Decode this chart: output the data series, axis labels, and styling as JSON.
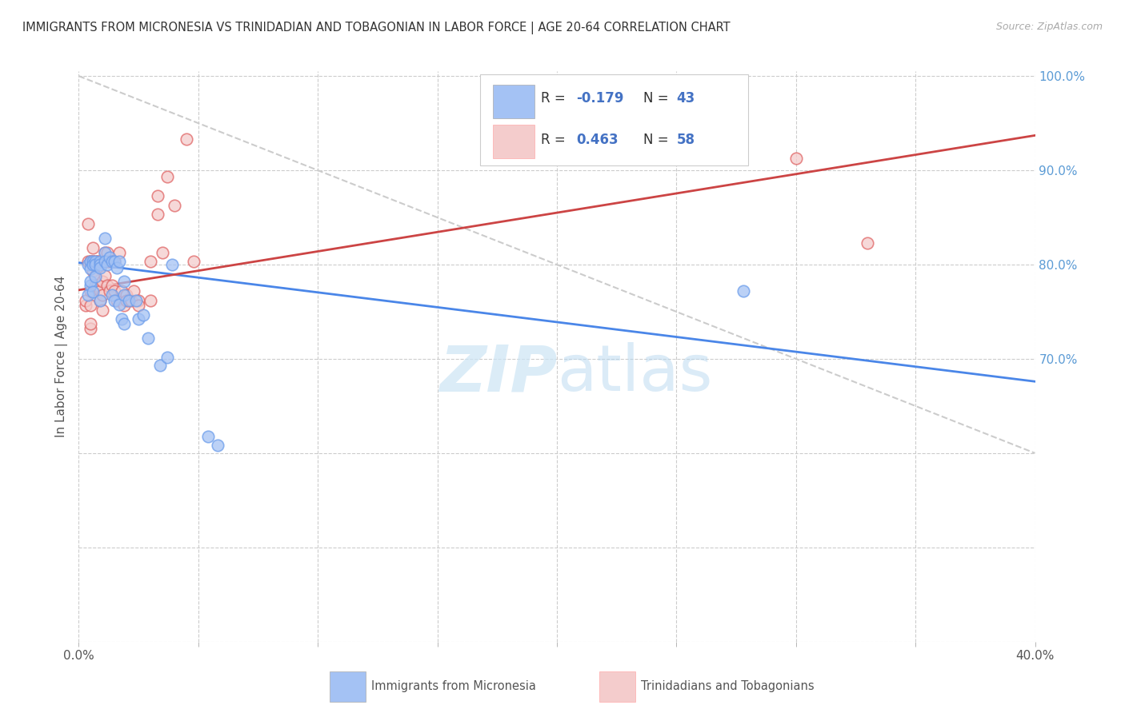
{
  "title": "IMMIGRANTS FROM MICRONESIA VS TRINIDADIAN AND TOBAGONIAN IN LABOR FORCE | AGE 20-64 CORRELATION CHART",
  "source": "Source: ZipAtlas.com",
  "ylabel": "In Labor Force | Age 20-64",
  "xlim": [
    0.0,
    0.4
  ],
  "ylim": [
    0.4,
    1.005
  ],
  "xticks": [
    0.0,
    0.05,
    0.1,
    0.15,
    0.2,
    0.25,
    0.3,
    0.35,
    0.4
  ],
  "xticklabels": [
    "0.0%",
    "",
    "",
    "",
    "",
    "",
    "",
    "",
    "40.0%"
  ],
  "yticks": [
    0.4,
    0.5,
    0.6,
    0.7,
    0.8,
    0.9,
    1.0
  ],
  "yticklabels_right": [
    "",
    "",
    "",
    "70.0%",
    "80.0%",
    "90.0%",
    "100.0%"
  ],
  "R_blue": -0.179,
  "N_blue": 43,
  "R_pink": 0.463,
  "N_pink": 58,
  "blue_color": "#a4c2f4",
  "pink_color": "#f4cccc",
  "blue_edge_color": "#6d9eeb",
  "pink_edge_color": "#e06666",
  "blue_line_color": "#4a86e8",
  "pink_line_color": "#cc4444",
  "blue_scatter": [
    [
      0.004,
      0.8
    ],
    [
      0.004,
      0.768
    ],
    [
      0.005,
      0.803
    ],
    [
      0.005,
      0.778
    ],
    [
      0.005,
      0.782
    ],
    [
      0.005,
      0.796
    ],
    [
      0.006,
      0.803
    ],
    [
      0.006,
      0.771
    ],
    [
      0.006,
      0.8
    ],
    [
      0.007,
      0.803
    ],
    [
      0.007,
      0.787
    ],
    [
      0.007,
      0.8
    ],
    [
      0.009,
      0.803
    ],
    [
      0.009,
      0.8
    ],
    [
      0.009,
      0.797
    ],
    [
      0.009,
      0.762
    ],
    [
      0.011,
      0.828
    ],
    [
      0.011,
      0.813
    ],
    [
      0.011,
      0.803
    ],
    [
      0.012,
      0.8
    ],
    [
      0.013,
      0.808
    ],
    [
      0.014,
      0.803
    ],
    [
      0.014,
      0.768
    ],
    [
      0.015,
      0.803
    ],
    [
      0.015,
      0.762
    ],
    [
      0.016,
      0.797
    ],
    [
      0.017,
      0.803
    ],
    [
      0.017,
      0.758
    ],
    [
      0.018,
      0.742
    ],
    [
      0.019,
      0.768
    ],
    [
      0.019,
      0.737
    ],
    [
      0.019,
      0.782
    ],
    [
      0.021,
      0.762
    ],
    [
      0.024,
      0.762
    ],
    [
      0.025,
      0.742
    ],
    [
      0.027,
      0.747
    ],
    [
      0.029,
      0.722
    ],
    [
      0.034,
      0.693
    ],
    [
      0.037,
      0.702
    ],
    [
      0.039,
      0.8
    ],
    [
      0.054,
      0.618
    ],
    [
      0.058,
      0.608
    ],
    [
      0.278,
      0.772
    ]
  ],
  "pink_scatter": [
    [
      0.003,
      0.757
    ],
    [
      0.003,
      0.762
    ],
    [
      0.004,
      0.843
    ],
    [
      0.004,
      0.803
    ],
    [
      0.005,
      0.803
    ],
    [
      0.005,
      0.803
    ],
    [
      0.005,
      0.772
    ],
    [
      0.005,
      0.757
    ],
    [
      0.005,
      0.732
    ],
    [
      0.005,
      0.737
    ],
    [
      0.006,
      0.818
    ],
    [
      0.006,
      0.803
    ],
    [
      0.006,
      0.803
    ],
    [
      0.006,
      0.793
    ],
    [
      0.007,
      0.803
    ],
    [
      0.007,
      0.788
    ],
    [
      0.007,
      0.778
    ],
    [
      0.008,
      0.803
    ],
    [
      0.008,
      0.803
    ],
    [
      0.008,
      0.778
    ],
    [
      0.009,
      0.772
    ],
    [
      0.009,
      0.762
    ],
    [
      0.01,
      0.803
    ],
    [
      0.01,
      0.782
    ],
    [
      0.01,
      0.768
    ],
    [
      0.01,
      0.752
    ],
    [
      0.011,
      0.813
    ],
    [
      0.011,
      0.803
    ],
    [
      0.011,
      0.788
    ],
    [
      0.012,
      0.813
    ],
    [
      0.012,
      0.803
    ],
    [
      0.012,
      0.778
    ],
    [
      0.013,
      0.803
    ],
    [
      0.013,
      0.772
    ],
    [
      0.014,
      0.778
    ],
    [
      0.015,
      0.803
    ],
    [
      0.015,
      0.772
    ],
    [
      0.016,
      0.762
    ],
    [
      0.017,
      0.813
    ],
    [
      0.018,
      0.772
    ],
    [
      0.019,
      0.757
    ],
    [
      0.02,
      0.768
    ],
    [
      0.02,
      0.762
    ],
    [
      0.022,
      0.762
    ],
    [
      0.023,
      0.772
    ],
    [
      0.025,
      0.762
    ],
    [
      0.025,
      0.757
    ],
    [
      0.03,
      0.803
    ],
    [
      0.03,
      0.762
    ],
    [
      0.033,
      0.873
    ],
    [
      0.033,
      0.853
    ],
    [
      0.035,
      0.813
    ],
    [
      0.037,
      0.893
    ],
    [
      0.04,
      0.863
    ],
    [
      0.045,
      0.933
    ],
    [
      0.048,
      0.803
    ],
    [
      0.3,
      0.913
    ],
    [
      0.33,
      0.823
    ]
  ],
  "blue_trend": [
    0.0,
    0.802,
    0.4,
    0.676
  ],
  "pink_trend": [
    0.0,
    0.773,
    0.4,
    0.937
  ],
  "diag_line": [
    0.0,
    1.0,
    0.4,
    0.6
  ],
  "watermark_zip": "ZIP",
  "watermark_atlas": "atlas",
  "background_color": "#ffffff",
  "grid_color": "#cccccc"
}
